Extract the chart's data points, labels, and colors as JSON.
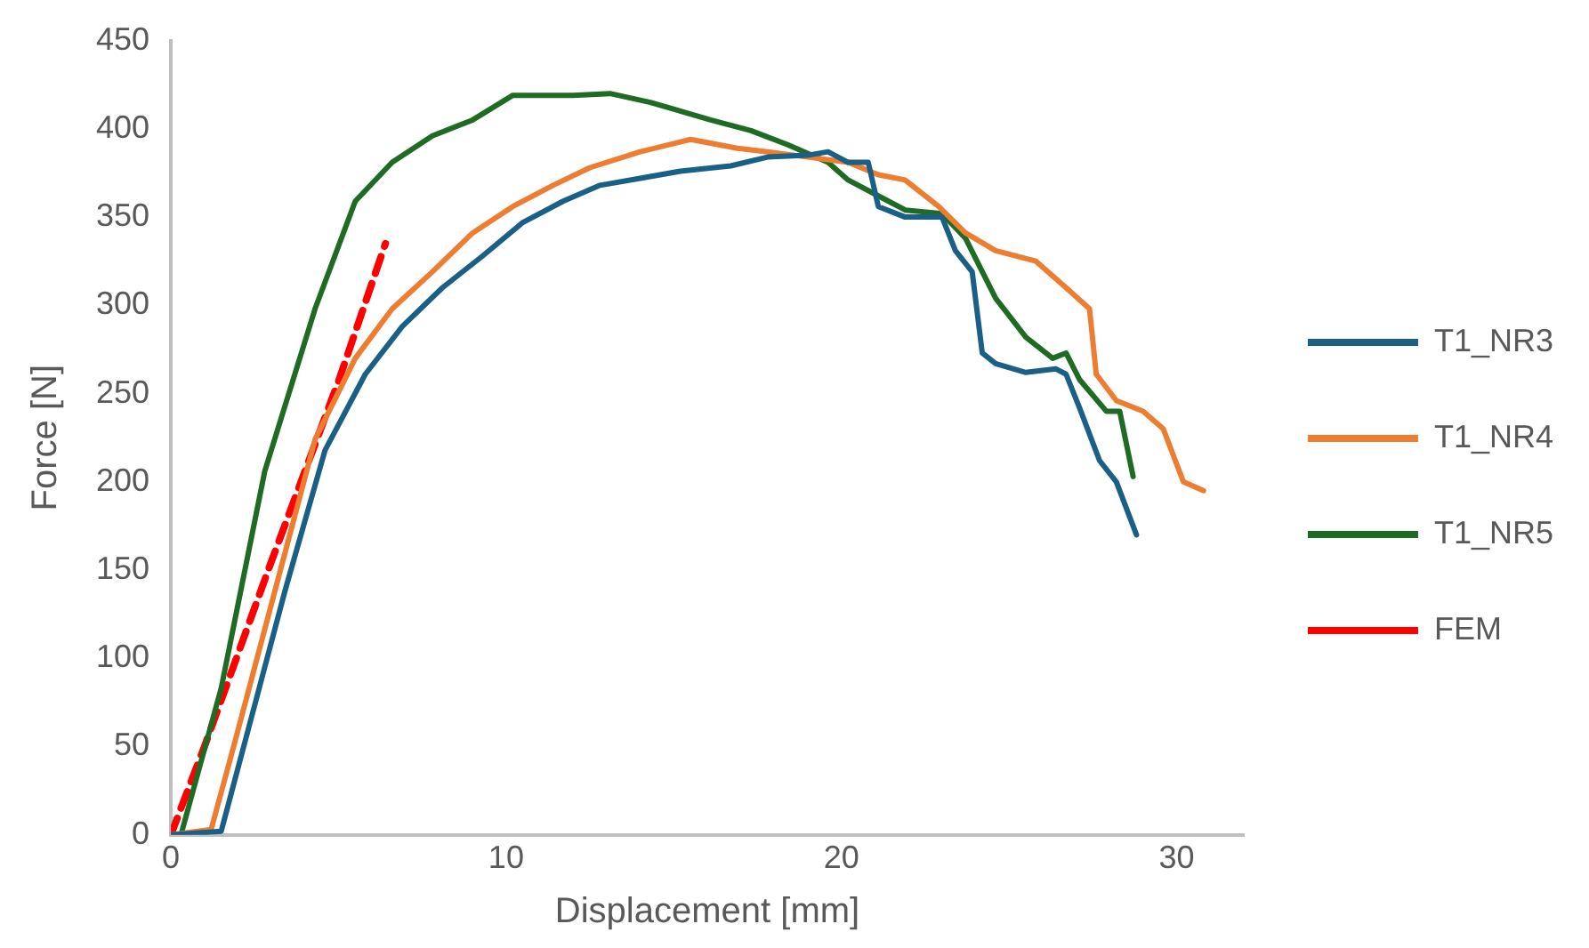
{
  "chart_data": {
    "type": "line",
    "xlabel": "Displacement [mm]",
    "ylabel": "Force [N]",
    "xlim": [
      0,
      32
    ],
    "xticks": [
      0,
      10,
      20,
      30
    ],
    "ylim": [
      0,
      450
    ],
    "yticks": [
      0,
      50,
      100,
      150,
      200,
      250,
      300,
      350,
      400,
      450
    ],
    "grid": false,
    "legend": "right",
    "marker": "none",
    "series": [
      {
        "name": "T1_NR3",
        "color": "#1a5f86",
        "line_style": "solid",
        "x": [
          0,
          1.5,
          2.2,
          3.4,
          4.6,
          5.8,
          6.9,
          8.1,
          9.3,
          10.5,
          11.7,
          12.8,
          14.0,
          15.2,
          16.7,
          17.8,
          19.0,
          19.6,
          20.2,
          20.8,
          21.1,
          21.9,
          23.0,
          23.4,
          23.9,
          24.2,
          24.6,
          25.5,
          26.4,
          26.7,
          27.1,
          27.7,
          28.2,
          28.8
        ],
        "values": [
          0,
          2,
          52,
          138,
          218,
          261,
          288,
          310,
          328,
          347,
          359,
          368,
          372,
          376,
          379,
          384,
          385,
          387,
          381,
          381,
          356,
          350,
          350,
          331,
          319,
          273,
          267,
          262,
          264,
          261,
          242,
          212,
          200,
          170
        ]
      },
      {
        "name": "T1_NR4",
        "color": "#ed7d31",
        "line_style": "solid",
        "x": [
          0,
          1.2,
          1.9,
          3.1,
          4.3,
          5.5,
          6.6,
          7.8,
          9.0,
          10.2,
          11.4,
          12.5,
          14.0,
          15.5,
          16.9,
          17.8,
          19.0,
          20.2,
          21.1,
          21.9,
          22.9,
          23.7,
          24.6,
          25.8,
          26.7,
          27.4,
          27.6,
          28.2,
          29.0,
          29.6,
          30.2,
          30.8
        ],
        "values": [
          0,
          3,
          52,
          138,
          224,
          270,
          298,
          319,
          341,
          356,
          368,
          378,
          387,
          394,
          389,
          387,
          384,
          381,
          374,
          371,
          356,
          341,
          331,
          325,
          310,
          298,
          261,
          246,
          240,
          230,
          200,
          195
        ]
      },
      {
        "name": "T1_NR5",
        "color": "#1e6b24",
        "line_style": "solid",
        "x": [
          0.3,
          1.5,
          2.8,
          4.3,
          5.5,
          6.6,
          7.8,
          9.0,
          10.2,
          12.0,
          13.1,
          14.3,
          16.1,
          17.3,
          18.4,
          19.6,
          20.2,
          21.1,
          21.9,
          23.0,
          23.7,
          24.6,
          25.5,
          26.3,
          26.7,
          27.1,
          27.9,
          28.3,
          28.7
        ],
        "values": [
          0,
          83,
          206,
          298,
          359,
          381,
          396,
          405,
          419,
          419,
          420,
          415,
          405,
          399,
          391,
          381,
          371,
          362,
          354,
          352,
          338,
          304,
          282,
          270,
          273,
          258,
          240,
          240,
          203
        ]
      },
      {
        "name": "FEM",
        "color": "#ff0000",
        "line_style": "dashed",
        "x": [
          0,
          1,
          3,
          5,
          6.4
        ],
        "values": [
          0,
          50,
          155,
          257,
          335
        ]
      }
    ]
  }
}
